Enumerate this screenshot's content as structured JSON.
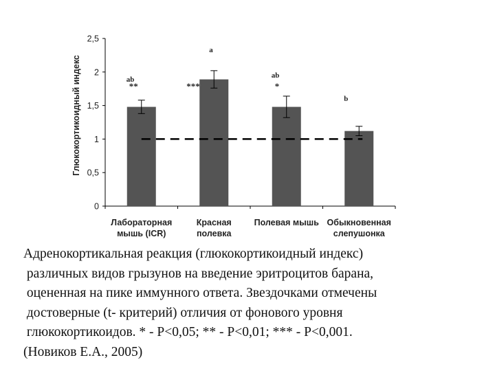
{
  "chart_data": {
    "type": "bar",
    "categories": [
      [
        "Лабораторная",
        "мышь (ICR)"
      ],
      [
        "Красная",
        "полевка"
      ],
      [
        "Полевая мышь"
      ],
      [
        "Обыкновенная",
        "слепушонка"
      ]
    ],
    "values": [
      1.48,
      1.89,
      1.48,
      1.12
    ],
    "error": [
      0.1,
      0.13,
      0.16,
      0.07
    ],
    "group_letters": [
      "ab",
      "a",
      "ab",
      "b"
    ],
    "significance": [
      "**",
      "***",
      "*",
      ""
    ],
    "reference_line": 1.0,
    "ylabel": "Глюкокортикоидный индекс",
    "xlabel": "",
    "ylim": [
      0,
      2.5
    ],
    "yticks": [
      "0",
      "0,5",
      "1",
      "1,5",
      "2",
      "2,5"
    ],
    "ytick_values": [
      0,
      0.5,
      1,
      1.5,
      2,
      2.5
    ],
    "grid": false,
    "colors": {
      "bar": "#545454",
      "axis": "#000000",
      "text": "#222222"
    }
  },
  "caption": {
    "lines": [
      "Адренокортикальная реакция (глюкокортикоидный индекс)",
      " различных видов грызунов на введение эритроцитов барана,",
      " оцененная на пике иммунного ответа. Звездочками отмечены",
      " достоверные (t- критерий) отличия от фонового уровня",
      " глюкокортикоидов. * - P<0,05; ** - P<0,01; *** - P<0,001.",
      "(Новиков Е.А., 2005)"
    ]
  }
}
